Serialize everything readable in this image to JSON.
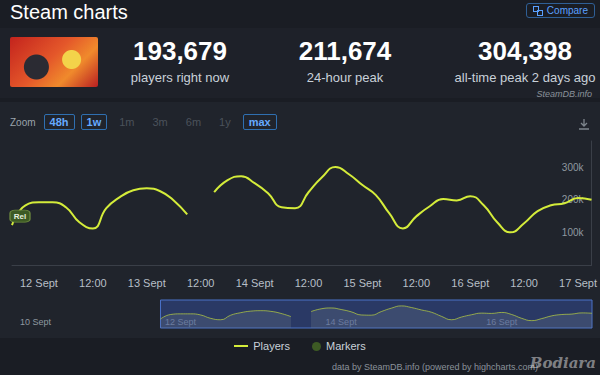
{
  "page": {
    "title": "Steam charts",
    "compare": "Compare",
    "stats": [
      {
        "value": "193,679",
        "label": "players right now"
      },
      {
        "value": "211,674",
        "label": "24-hour peak"
      },
      {
        "value": "304,398",
        "label": "all-time peak 2 days ago"
      }
    ],
    "source": "SteamDB.info",
    "zoom": {
      "label": "Zoom",
      "buttons": [
        "48h",
        "1w",
        "1m",
        "3m",
        "6m",
        "1y",
        "max"
      ]
    },
    "credit": "data by SteamDB.info (powered by highcharts.com)",
    "watermark": "Bodiara"
  },
  "chart_data": {
    "type": "line",
    "x": [
      null,
      null,
      "12 Sept",
      null,
      null,
      null,
      "12:00",
      null,
      null,
      null,
      "13 Sept",
      null,
      null,
      null,
      "12:00",
      null,
      null,
      null,
      "14 Sept",
      null,
      null,
      null,
      "12:00",
      null,
      null,
      null,
      "15 Sept",
      null,
      null,
      null,
      "12:00",
      null,
      null,
      null,
      "16 Sept",
      null,
      null,
      null,
      "12:00",
      null,
      null,
      null,
      "17 Sept",
      null
    ],
    "series": [
      {
        "name": "Players",
        "color": "#d4ec3a",
        "marker": "none",
        "line_style": "solid",
        "values": [
          122000,
          183000,
          192000,
          192000,
          177000,
          131000,
          112000,
          174000,
          208000,
          229000,
          235000,
          226000,
          198000,
          155000,
          null,
          223000,
          260000,
          272000,
          251000,
          220000,
          177000,
          174000,
          223000,
          269000,
          300000,
          278000,
          245000,
          214000,
          158000,
          112000,
          149000,
          180000,
          202000,
          198000,
          211000,
          183000,
          131000,
          100000,
          128000,
          165000,
          183000,
          189000,
          205000,
          200000
        ]
      }
    ],
    "markers": {
      "name": "Markers",
      "color": "#3d5a24",
      "labels": [
        "Rel"
      ]
    },
    "ylim": [
      0,
      380000
    ],
    "yticks": [
      {
        "value": 100000,
        "label": "100k"
      },
      {
        "value": 200000,
        "label": "200k"
      },
      {
        "value": 300000,
        "label": "300k"
      }
    ],
    "grid": false,
    "legend": "bottom",
    "navigator": {
      "x": [
        "10 Sept",
        null,
        null,
        null,
        null,
        null,
        null,
        null,
        null,
        null,
        null,
        null,
        null,
        null,
        null,
        null,
        "12 Sept",
        null,
        null,
        null,
        null,
        null,
        null,
        null,
        null,
        null,
        null,
        null,
        null,
        null,
        null,
        null,
        "14 Sept",
        null,
        null,
        null,
        null,
        null,
        null,
        null,
        null,
        null,
        null,
        null,
        null,
        null,
        null,
        null,
        "16 Sept",
        null,
        null,
        null,
        null,
        null,
        null,
        null,
        null,
        null
      ]
    }
  }
}
